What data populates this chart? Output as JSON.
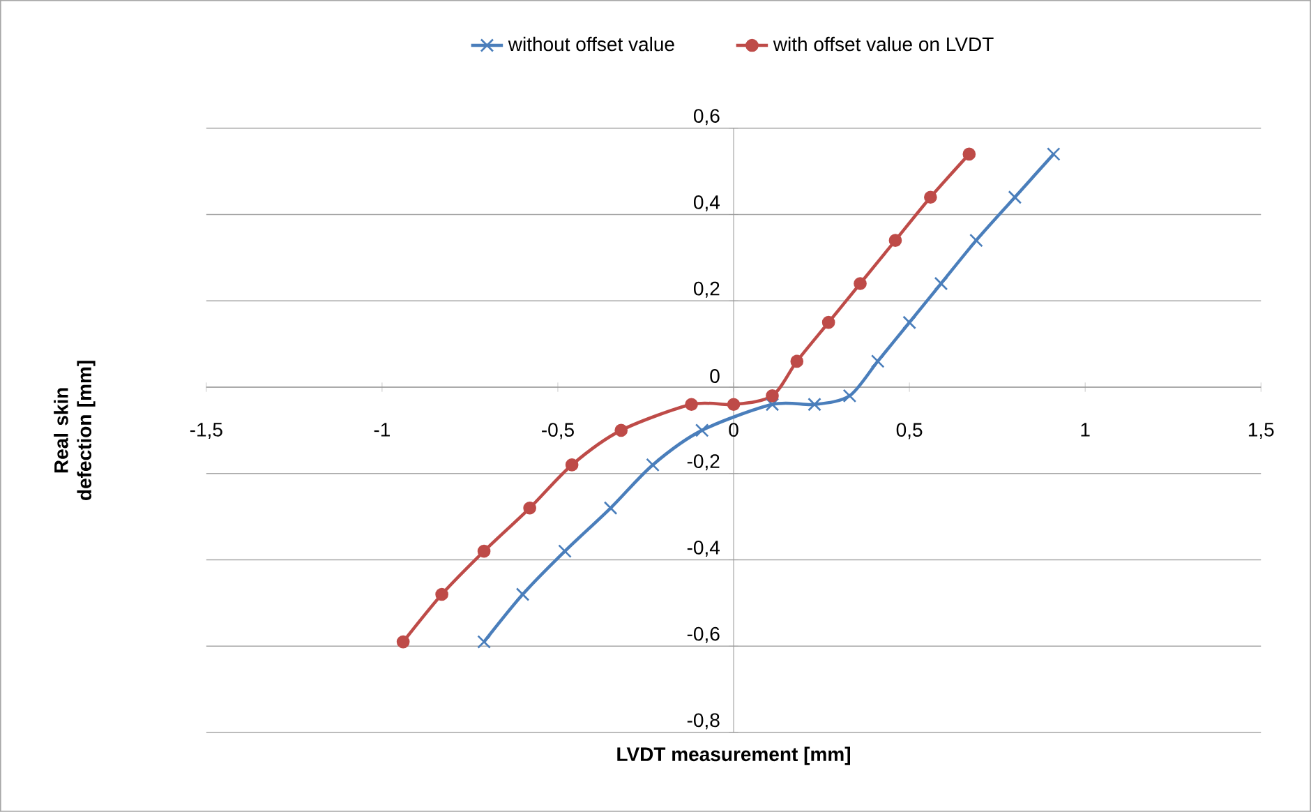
{
  "chart_data": {
    "type": "line",
    "xlabel": "LVDT measurement [mm]",
    "ylabel": "Real skin defection [mm]",
    "xlim": [
      -1.5,
      1.5
    ],
    "ylim": [
      -0.8,
      0.6
    ],
    "xticks": [
      {
        "value": -1.5,
        "label": "-1,5"
      },
      -1,
      {
        "value": -0.5,
        "label": "-0,5"
      },
      0,
      {
        "value": 0.5,
        "label": "0,5"
      },
      1,
      {
        "value": 1.5,
        "label": "1,5"
      }
    ],
    "yticks": [
      {
        "value": -0.8,
        "label": "-0,8"
      },
      {
        "value": -0.6,
        "label": "-0,6"
      },
      {
        "value": -0.4,
        "label": "-0,4"
      },
      {
        "value": -0.2,
        "label": "-0,2"
      },
      0,
      {
        "value": 0.2,
        "label": "0,2"
      },
      {
        "value": 0.4,
        "label": "0,4"
      },
      {
        "value": 0.6,
        "label": "0,6"
      }
    ],
    "grid": "y",
    "legend": "top",
    "series": [
      {
        "name": "without offset value",
        "color": "#4a7ebb",
        "marker": "cross",
        "x": [
          -0.71,
          -0.6,
          -0.48,
          -0.35,
          -0.23,
          -0.09,
          0.11,
          0.23,
          0.33,
          0.41,
          0.5,
          0.59,
          0.69,
          0.8,
          0.91
        ],
        "values": [
          -0.59,
          -0.48,
          -0.38,
          -0.28,
          -0.18,
          -0.1,
          -0.04,
          -0.04,
          -0.02,
          0.06,
          0.15,
          0.24,
          0.34,
          0.44,
          0.54
        ]
      },
      {
        "name": "with offset value on LVDT",
        "color": "#be4b48",
        "marker": "circle",
        "x": [
          -0.94,
          -0.83,
          -0.71,
          -0.58,
          -0.46,
          -0.32,
          -0.12,
          0.0,
          0.11,
          0.18,
          0.27,
          0.36,
          0.46,
          0.56,
          0.67
        ],
        "values": [
          -0.59,
          -0.48,
          -0.38,
          -0.28,
          -0.18,
          -0.1,
          -0.04,
          -0.04,
          -0.02,
          0.06,
          0.15,
          0.24,
          0.34,
          0.44,
          0.54
        ]
      }
    ]
  }
}
